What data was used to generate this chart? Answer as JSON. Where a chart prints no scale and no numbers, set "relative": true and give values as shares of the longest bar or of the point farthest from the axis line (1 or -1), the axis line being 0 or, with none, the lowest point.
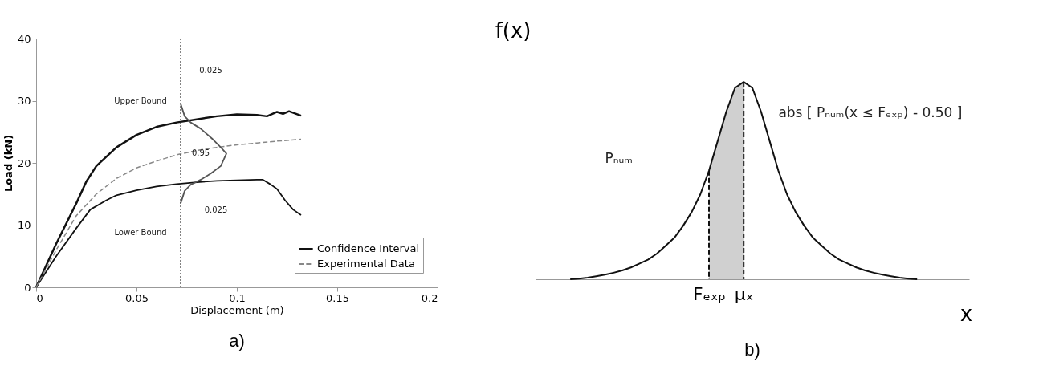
{
  "chart_data": [
    {
      "type": "line",
      "title": "a)",
      "xlabel": "Displacement (m)",
      "ylabel": "Load (kN)",
      "xlim": [
        0,
        0.2
      ],
      "xticks": [
        0,
        0.05,
        0.1,
        0.15,
        0.2
      ],
      "ylim": [
        0,
        40
      ],
      "yticks": [
        0,
        10,
        20,
        30,
        40
      ],
      "legend": "bottom right",
      "x": [
        0,
        0.01,
        0.02,
        0.025,
        0.03,
        0.04,
        0.05,
        0.06,
        0.07,
        0.08,
        0.09,
        0.1,
        0.11,
        0.115,
        0.12,
        0.123,
        0.126,
        0.132
      ],
      "series": [
        {
          "name": "Confidence Interval",
          "color": "#111111",
          "values": [
            0,
            7,
            13.5,
            17,
            19.5,
            22.5,
            24.5,
            25.8,
            26.5,
            27,
            27.5,
            27.8,
            27.7,
            27.5,
            28.2,
            27.9,
            28.3,
            27.6
          ]
        },
        {
          "color": "#111111",
          "x": [
            0,
            0.01,
            0.02,
            0.027,
            0.035,
            0.04,
            0.05,
            0.06,
            0.07,
            0.08,
            0.09,
            0.1,
            0.11,
            0.113,
            0.117,
            0.12,
            0.124,
            0.128,
            0.132
          ],
          "values": [
            0,
            5,
            9.5,
            12.5,
            14,
            14.8,
            15.6,
            16.2,
            16.6,
            16.9,
            17.1,
            17.2,
            17.3,
            17.3,
            16.5,
            15.8,
            14,
            12.5,
            11.6
          ]
        },
        {
          "name": "Experimental Data",
          "color": "#888888",
          "line_style": "dashed",
          "x": [
            0,
            0.01,
            0.02,
            0.03,
            0.04,
            0.05,
            0.06,
            0.07,
            0.08,
            0.09,
            0.1,
            0.11,
            0.12,
            0.132
          ],
          "values": [
            0,
            6,
            11.5,
            15,
            17.5,
            19.2,
            20.3,
            21.3,
            22,
            22.5,
            22.9,
            23.2,
            23.5,
            23.8
          ]
        },
        {
          "color": "#555555",
          "x": [
            0.072,
            0.074,
            0.077,
            0.082,
            0.088,
            0.092,
            0.0948,
            0.092,
            0.087,
            0.082,
            0.077,
            0.074,
            0.072
          ],
          "values": [
            29.5,
            27.5,
            26.5,
            25.5,
            23.8,
            22.5,
            21.5,
            19.5,
            18.3,
            17.3,
            16.5,
            15.5,
            13.5
          ]
        }
      ],
      "ref_lines": [
        {
          "axis": "x",
          "value": 0.072,
          "line_style": "dotted",
          "color": "#333333"
        }
      ],
      "annotations": [
        "Upper Bound",
        "Lower Bound",
        "0.025",
        "0.025",
        "0.95"
      ]
    },
    {
      "type": "line",
      "title": "b)",
      "xlabel": "x",
      "ylabel": "f(x)",
      "relative": true,
      "categories": [
        null,
        null,
        null,
        null,
        null,
        null,
        null,
        null,
        null,
        null,
        null,
        null,
        null,
        null,
        null,
        null,
        null,
        null,
        null,
        null,
        "Fₑₓₚ",
        null,
        null,
        null,
        "μₓ",
        null,
        null,
        null,
        null,
        null,
        null,
        null,
        null,
        null,
        null,
        null,
        null,
        null,
        null,
        null,
        null,
        null,
        null,
        null,
        null,
        null,
        null,
        null,
        null,
        null,
        null
      ],
      "series": [
        {
          "type": "area",
          "color": "#d0d0d0",
          "values": [
            null,
            null,
            null,
            null,
            null,
            null,
            null,
            null,
            null,
            null,
            null,
            null,
            null,
            null,
            null,
            null,
            null,
            null,
            null,
            null,
            0.55,
            0.7,
            0.85,
            0.97,
            1,
            null,
            null,
            null,
            null,
            null,
            null,
            null,
            null,
            null,
            null,
            null,
            null,
            null,
            null,
            null,
            null,
            null,
            null,
            null,
            null,
            null,
            null,
            null,
            null,
            null,
            null
          ]
        },
        {
          "color": "#111111",
          "values": [
            null,
            null,
            null,
            null,
            0,
            0.003,
            0.008,
            0.015,
            0.023,
            0.033,
            0.045,
            0.06,
            0.08,
            0.1,
            0.13,
            0.17,
            0.21,
            0.27,
            0.34,
            0.43,
            0.55,
            0.7,
            0.85,
            0.97,
            1,
            0.97,
            0.85,
            0.7,
            0.55,
            0.43,
            0.34,
            0.27,
            0.21,
            0.17,
            0.13,
            0.1,
            0.08,
            0.06,
            0.045,
            0.033,
            0.023,
            0.015,
            0.008,
            0.003,
            0,
            null,
            null,
            null,
            null,
            null,
            null
          ]
        }
      ],
      "ref_lines": [
        {
          "axis": "x",
          "value": "Fₑₓₚ",
          "line_style": "dashed",
          "color": "#111111"
        },
        {
          "axis": "x",
          "value": "μₓ",
          "line_style": "dashed",
          "color": "#111111"
        }
      ],
      "annotations": [
        "Pₙᵤₘ",
        "abs [ Pₙᵤₘ(x ≤ Fₑₓₚ) - 0.50 ]"
      ]
    }
  ]
}
